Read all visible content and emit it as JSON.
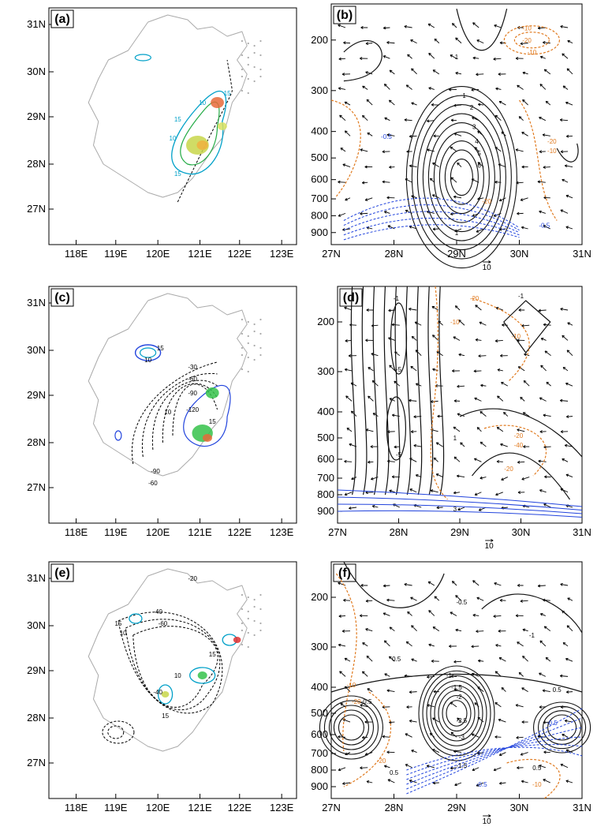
{
  "figure": {
    "panels": [
      {
        "label": "(a)",
        "kind": "map",
        "lat_ticks": [
          "31N",
          "30N",
          "29N",
          "28N",
          "27N"
        ],
        "lon_ticks": [
          "118E",
          "119E",
          "120E",
          "121E",
          "122E",
          "123E"
        ],
        "contour_labels": [
          "15",
          "10",
          "15",
          "10",
          "15"
        ]
      },
      {
        "label": "(b)",
        "kind": "section",
        "p_ticks": [
          "200",
          "300",
          "400",
          "500",
          "600",
          "700",
          "800",
          "900"
        ],
        "lat_ticks": [
          "27N",
          "28N",
          "29N",
          "30N",
          "31N"
        ],
        "ref_vector": "10",
        "black_labels": [
          "1",
          "1",
          "2",
          "3",
          "4",
          "5",
          "6",
          "1"
        ],
        "orange_labels": [
          "-10",
          "-20",
          "-10",
          "-20",
          "-10",
          "-20"
        ],
        "blue_labels": [
          "-0.5",
          "-0.5"
        ]
      },
      {
        "label": "(c)",
        "kind": "map",
        "lat_ticks": [
          "31N",
          "30N",
          "29N",
          "28N",
          "27N"
        ],
        "lon_ticks": [
          "118E",
          "119E",
          "120E",
          "121E",
          "122E",
          "123E"
        ],
        "contour_labels": [
          "15",
          "10",
          "-30",
          "-60",
          "-90",
          "-120",
          "-90",
          "-60",
          "10",
          "15"
        ]
      },
      {
        "label": "(d)",
        "kind": "section",
        "p_ticks": [
          "200",
          "300",
          "400",
          "500",
          "600",
          "700",
          "800",
          "900"
        ],
        "lat_ticks": [
          "27N",
          "28N",
          "29N",
          "30N",
          "31N"
        ],
        "ref_vector": "10",
        "black_labels": [
          "-1",
          "-5",
          "-5",
          "1",
          "-1",
          "3"
        ],
        "orange_labels": [
          "-20",
          "-10",
          "-10",
          "-20",
          "-40",
          "-20"
        ],
        "blue_labels": []
      },
      {
        "label": "(e)",
        "kind": "map",
        "lat_ticks": [
          "31N",
          "30N",
          "29N",
          "28N",
          "27N"
        ],
        "lon_ticks": [
          "118E",
          "119E",
          "120E",
          "121E",
          "122E",
          "123E"
        ],
        "contour_labels": [
          "-20",
          "-40",
          "-60",
          "15",
          "10",
          "-40",
          "15",
          "15",
          "10"
        ]
      },
      {
        "label": "(f)",
        "kind": "section",
        "p_ticks": [
          "200",
          "300",
          "400",
          "500",
          "600",
          "700",
          "800",
          "900"
        ],
        "lat_ticks": [
          "27N",
          "28N",
          "29N",
          "30N",
          "31N"
        ],
        "ref_vector": "10",
        "black_labels": [
          "-0.5",
          "-1",
          "0.5",
          "-1",
          "-1.5",
          "-2",
          "-0.5",
          "0.5",
          "-2.5",
          "-3",
          "0.5",
          "-1.5",
          "0.5"
        ],
        "orange_labels": [
          "-10",
          "-20",
          "-10",
          "-20"
        ],
        "blue_labels": [
          "-0.5",
          "-0.5"
        ]
      }
    ],
    "colors": {
      "black_contour": "#111111",
      "orange_contour": "#e07a1f",
      "blue_contour": "#2244dd",
      "cyan_contour": "#00a0c8",
      "green_contour": "#22aa44",
      "map_outline": "#aaaaaa"
    }
  }
}
